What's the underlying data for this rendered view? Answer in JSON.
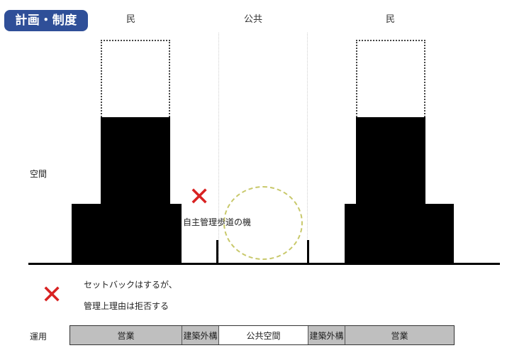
{
  "badge": {
    "label": "計画・制度"
  },
  "header": {
    "left": "民",
    "center": "公共",
    "right": "民"
  },
  "side_labels": {
    "space": "空間",
    "operation": "運用"
  },
  "annotation": {
    "autonomous": "自主管理歩道の機"
  },
  "note": {
    "line1": "セットバックはするが、",
    "line2": "管理上理由は拒否する"
  },
  "operation_bar": {
    "segments": [
      {
        "label": "営業",
        "tone": "gray"
      },
      {
        "label": "建築外構",
        "tone": "gray"
      },
      {
        "label": "公共空間",
        "tone": "white"
      },
      {
        "label": "建築外構",
        "tone": "gray"
      },
      {
        "label": "営業",
        "tone": "gray"
      }
    ]
  },
  "colors": {
    "badge": "#2f4f98",
    "cross": "#d82222",
    "oval": "#c8c86a",
    "building": "#000000"
  }
}
